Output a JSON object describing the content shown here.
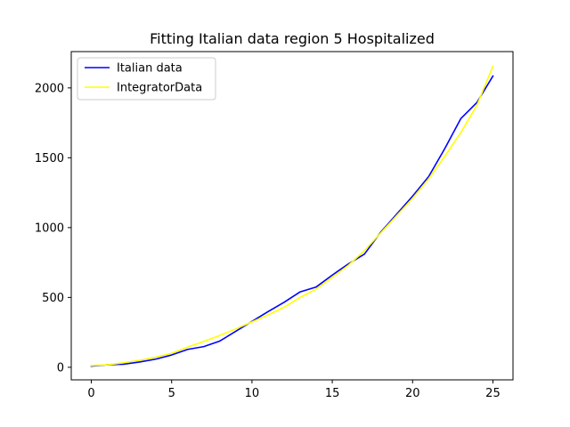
{
  "chart_data": {
    "type": "line",
    "title": "Fitting Italian data region 5 Hospitalized",
    "xlabel": "",
    "ylabel": "",
    "xlim": [
      -1.25,
      26.25
    ],
    "ylim": [
      -90,
      2260
    ],
    "xticks": [
      0,
      5,
      10,
      15,
      20,
      25
    ],
    "yticks": [
      0,
      500,
      1000,
      1500,
      2000
    ],
    "grid": false,
    "legend_position": "upper-left",
    "series": [
      {
        "name": "Italian data",
        "color": "#0000ff",
        "x": [
          0,
          1,
          2,
          3,
          4,
          5,
          6,
          7,
          8,
          9,
          10,
          11,
          12,
          13,
          14,
          15,
          16,
          17,
          18,
          19,
          20,
          21,
          22,
          23,
          24,
          25
        ],
        "y": [
          8,
          18,
          22,
          38,
          58,
          88,
          128,
          148,
          188,
          258,
          328,
          398,
          465,
          540,
          575,
          660,
          740,
          810,
          965,
          1095,
          1225,
          1365,
          1565,
          1780,
          1895,
          2085
        ]
      },
      {
        "name": "IntegratorData",
        "color": "#ffff00",
        "x": [
          0,
          1,
          2,
          3,
          4,
          5,
          6,
          7,
          8,
          9,
          10,
          11,
          12,
          13,
          14,
          15,
          16,
          17,
          18,
          19,
          20,
          21,
          22,
          23,
          24,
          25
        ],
        "y": [
          12,
          18,
          32,
          50,
          72,
          100,
          145,
          185,
          228,
          275,
          325,
          375,
          430,
          500,
          560,
          645,
          730,
          835,
          960,
          1085,
          1210,
          1350,
          1510,
          1680,
          1875,
          2155
        ]
      }
    ]
  }
}
